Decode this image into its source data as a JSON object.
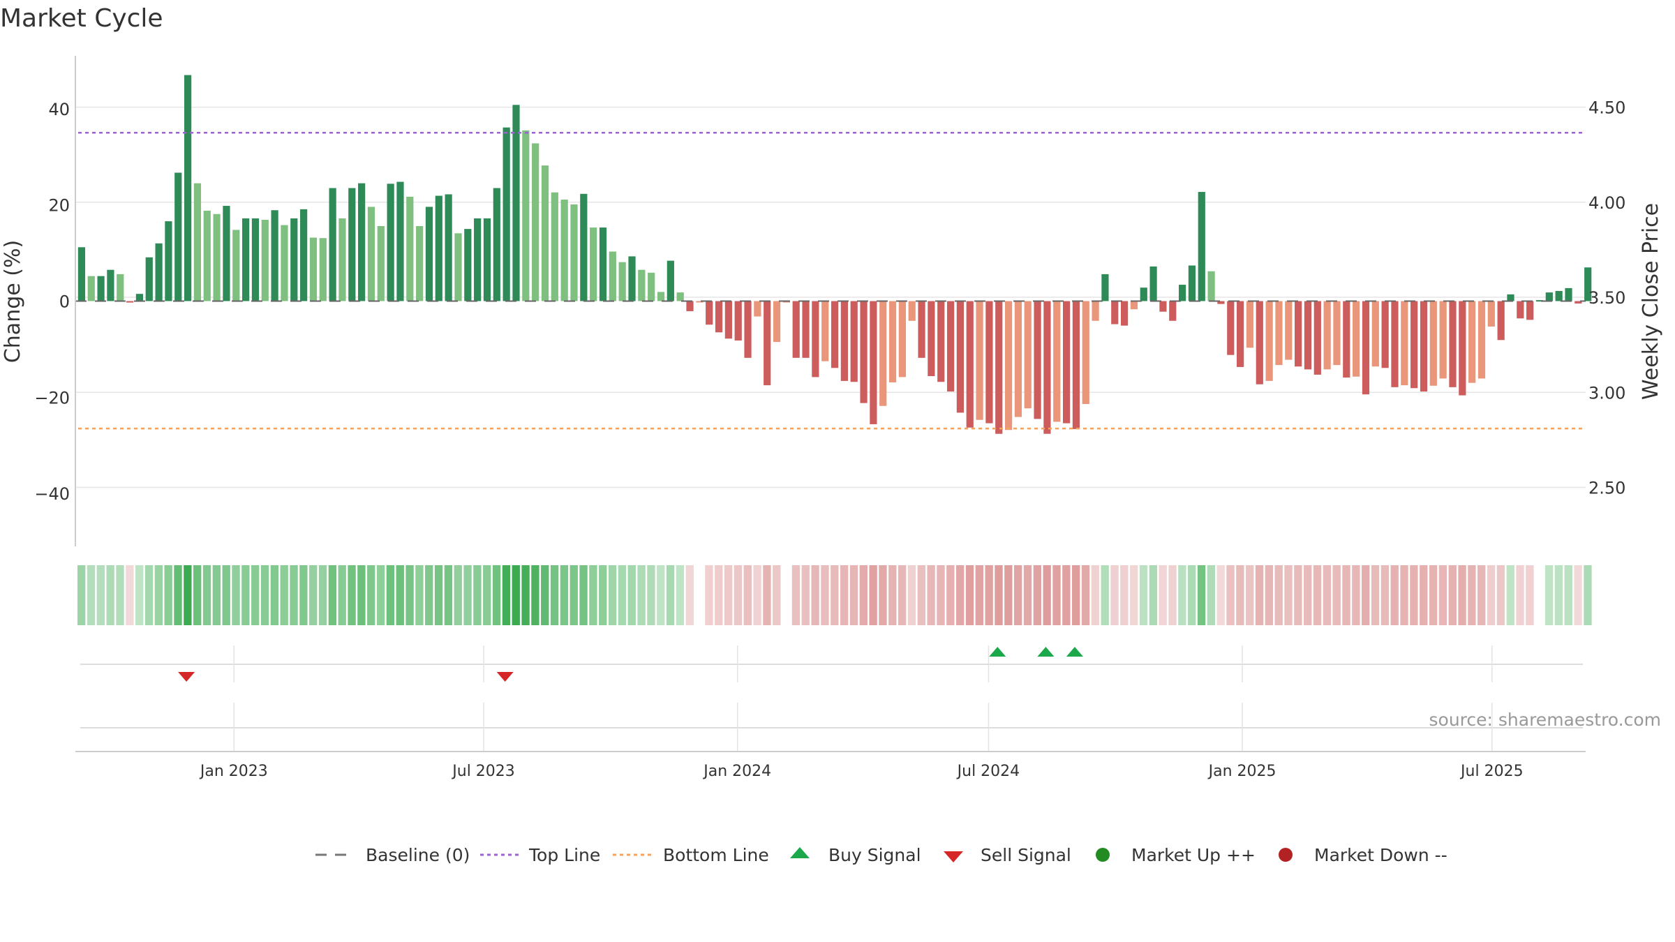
{
  "chart_data": {
    "type": "bar",
    "title": "Market Cycle",
    "ylabel_left": "Change (%)",
    "ylabel_right": "Weekly Close Price",
    "ylim_left": [
      -51,
      51
    ],
    "yticks_left": [
      40,
      20,
      0,
      -20,
      -40
    ],
    "ytick_labels_left": [
      "40",
      "20",
      "0",
      "−20",
      "−40"
    ],
    "ylim_right": [
      2.19,
      4.77
    ],
    "yticks_right": [
      4.5,
      4.0,
      3.5,
      3.0,
      2.5
    ],
    "ytick_labels_right": [
      "4.50",
      "4.00",
      "3.50",
      "3.00",
      "2.50"
    ],
    "x_dates": [
      "Jan 2023",
      "Jul 2023",
      "Jan 2024",
      "Jul 2024",
      "Jan 2025",
      "Jul 2025"
    ],
    "start_date": "2022-09-09",
    "top_line": 35,
    "bottom_line": -26.5,
    "baseline": 0,
    "colors": {
      "strong_up": "#2e8b57",
      "up": "#7fbf7f",
      "strong_down": "#cd5c5c",
      "down": "#e9967a",
      "top_line": "#9966cc",
      "bottom_line": "#f4a460",
      "buy": "#1aa84a",
      "sell": "#d62728",
      "market_up": "#228b22",
      "market_down": "#b22222"
    },
    "weekly_change": [
      11.2,
      5.2,
      5.2,
      6.5,
      5.6,
      -0.3,
      1.5,
      9.1,
      12,
      16.6,
      26.7,
      47,
      24.5,
      18.8,
      18.1,
      19.8,
      14.8,
      17.2,
      17.2,
      16.9,
      18.9,
      15.8,
      17.2,
      19.1,
      13.2,
      13.1,
      23.5,
      17.2,
      23.5,
      24.5,
      19.6,
      15.6,
      24.4,
      24.8,
      21.7,
      15.6,
      19.6,
      21.9,
      22.2,
      14.1,
      15,
      17.2,
      17.2,
      23.5,
      36.1,
      40.8,
      35.5,
      32.8,
      28.2,
      22.6,
      21.1,
      20.1,
      22.3,
      15.3,
      15.3,
      10.3,
      8.1,
      9.3,
      6.5,
      5.9,
      1.9,
      8.4,
      1.8,
      -2.1,
      -0.2,
      -4.9,
      -6.5,
      -7.8,
      -8.2,
      -11.8,
      -3.2,
      -17.5,
      -8.5,
      -0.2,
      -11.8,
      -11.8,
      -15.8,
      -12.5,
      -13.9,
      -16.6,
      -16.8,
      -21.2,
      -25.6,
      -21.8,
      -16.9,
      -15.8,
      -4.1,
      -11.8,
      -15.6,
      -16.8,
      -18.8,
      -23.2,
      -26.3,
      -24.7,
      -25.4,
      -27.6,
      -26.8,
      -24.1,
      -22.3,
      -24.5,
      -27.6,
      -25.1,
      -25.4,
      -26.6,
      -21.4,
      -4.1,
      5.6,
      -4.8,
      -5.1,
      -1.7,
      2.8,
      7.2,
      -2.2,
      -4.1,
      3.4,
      7.4,
      22.7,
      6.2,
      -0.6,
      -11.2,
      -13.7,
      -9.7,
      -17.3,
      -16.6,
      -13.3,
      -12.2,
      -13.6,
      -14.2,
      -15.3,
      -14.2,
      -13.3,
      -15.9,
      -15.7,
      -19.4,
      -13.6,
      -13.9,
      -17.9,
      -17.5,
      -18.1,
      -18.8,
      -17.6,
      -16.1,
      -17.9,
      -19.6,
      -17,
      -16.1,
      -5.3,
      -8.1,
      1.4,
      -3.6,
      -3.9,
      0.2,
      1.8,
      2.1,
      2.7,
      -0.5,
      7
    ],
    "signals": {
      "sell_weeks": [
        11,
        44
      ],
      "buy_weeks": [
        95,
        100,
        103
      ]
    },
    "legend": [
      "Baseline (0)",
      "Top Line",
      "Bottom Line",
      "Buy Signal",
      "Sell Signal",
      "Market Up ++",
      "Market Down --"
    ],
    "source": "source: sharemaestro.com"
  }
}
